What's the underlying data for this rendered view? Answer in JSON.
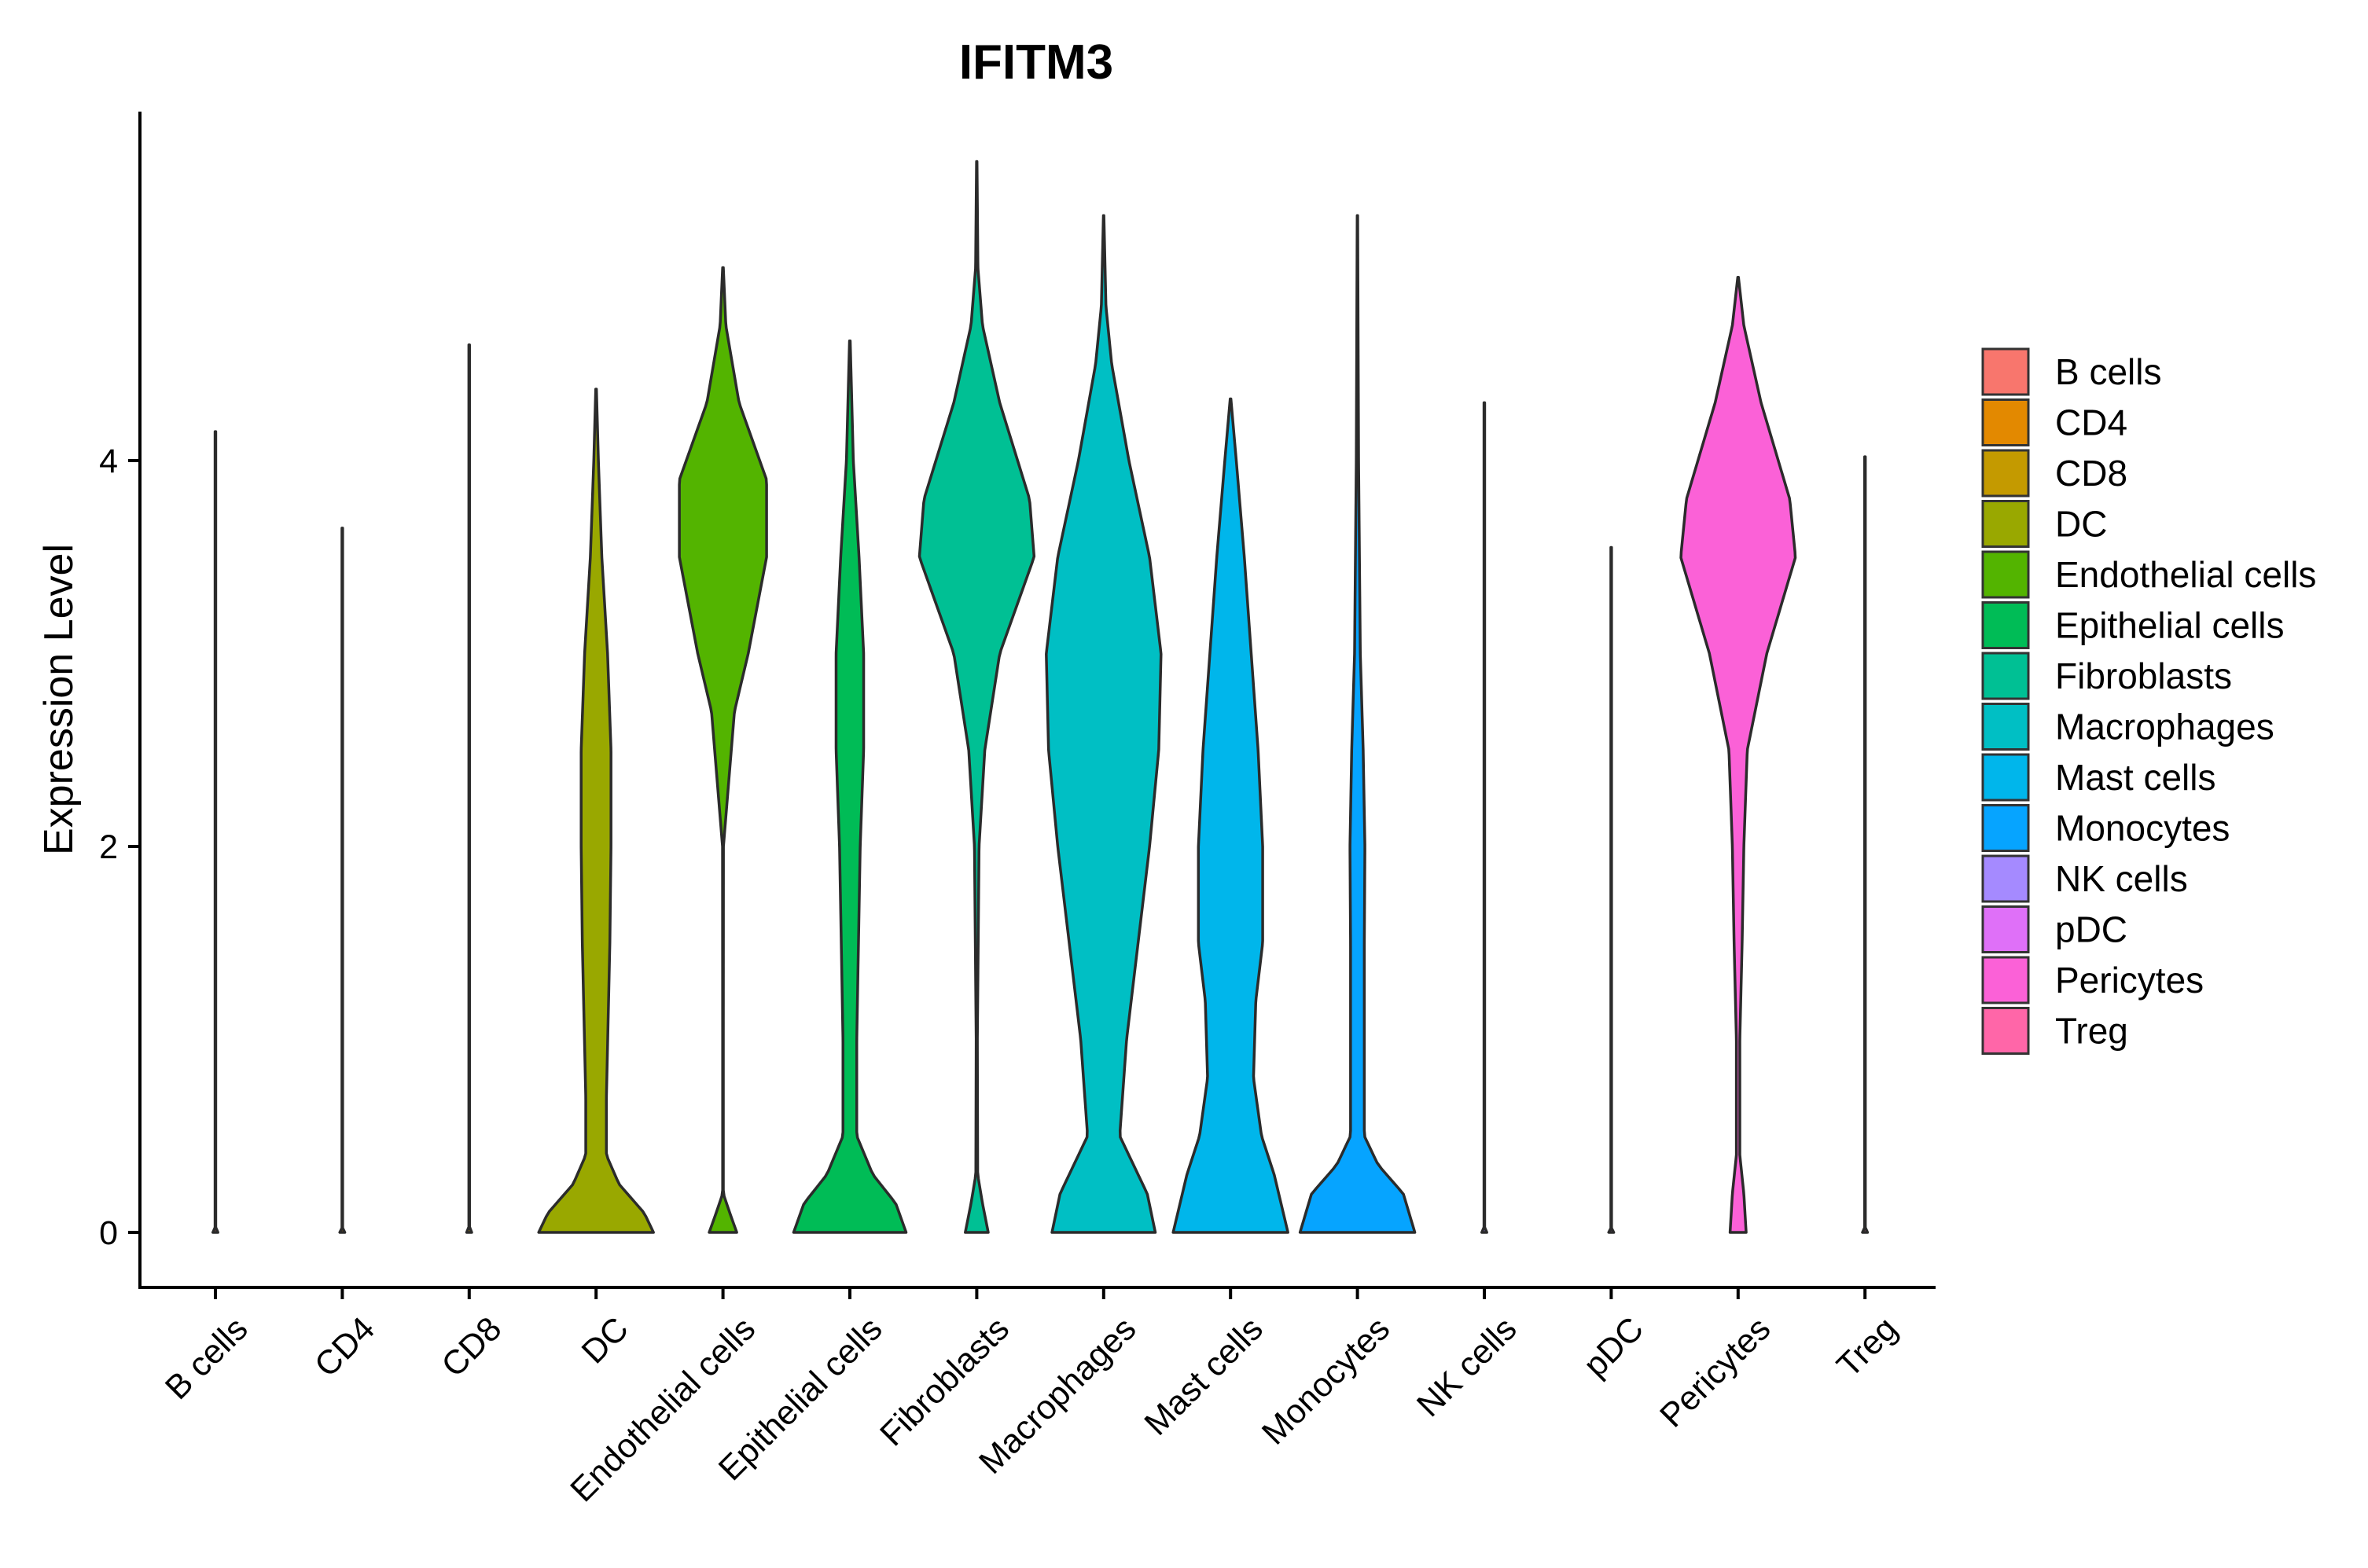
{
  "chart_data": {
    "type": "violin",
    "title": "IFITM3",
    "xlabel": "",
    "ylabel": "Expression Level",
    "ylim": [
      -0.27,
      5.72
    ],
    "yticks": [
      0,
      2,
      4
    ],
    "categories": [
      "B cells",
      "CD4",
      "CD8",
      "DC",
      "Endothelial cells",
      "Epithelial cells",
      "Fibroblasts",
      "Macrophages",
      "Mast cells",
      "Monocytes",
      "NK cells",
      "pDC",
      "Pericytes",
      "Treg"
    ],
    "colors": [
      "#F8766D",
      "#E38900",
      "#C49A00",
      "#99A800",
      "#53B400",
      "#00BC56",
      "#00C094",
      "#00BFC4",
      "#00B6EB",
      "#06A4FF",
      "#A58AFF",
      "#DF70F8",
      "#FB61D7",
      "#FF66A8"
    ],
    "legend_title": "",
    "legend_position": "right",
    "series": [
      {
        "name": "B cells",
        "max": 4.15,
        "profile": [
          [
            0,
            0.022
          ],
          [
            0.005,
            0.5
          ],
          [
            0.02,
            0.003
          ],
          [
            4.15,
            0.003
          ]
        ]
      },
      {
        "name": "CD4",
        "max": 3.65,
        "profile": [
          [
            0,
            0.022
          ],
          [
            0.005,
            0.5
          ],
          [
            0.02,
            0.003
          ],
          [
            3.65,
            0.003
          ]
        ]
      },
      {
        "name": "CD8",
        "max": 4.6,
        "profile": [
          [
            0,
            0.022
          ],
          [
            0.005,
            0.5
          ],
          [
            0.02,
            0.003
          ],
          [
            4.6,
            0.003
          ]
        ]
      },
      {
        "name": "DC",
        "max": 4.37,
        "profile": [
          [
            0,
            0.5
          ],
          [
            0.1,
            0.42
          ],
          [
            0.25,
            0.2
          ],
          [
            0.4,
            0.09
          ],
          [
            0.7,
            0.09
          ],
          [
            1.5,
            0.12
          ],
          [
            2.0,
            0.13
          ],
          [
            2.5,
            0.13
          ],
          [
            3.0,
            0.1
          ],
          [
            3.5,
            0.05
          ],
          [
            4.0,
            0.02
          ],
          [
            4.37,
            0.003
          ]
        ]
      },
      {
        "name": "Endothelial cells",
        "max": 5.0,
        "profile": [
          [
            0,
            0.12
          ],
          [
            0.1,
            0.06
          ],
          [
            0.2,
            0.003
          ],
          [
            1.0,
            0.003
          ],
          [
            2.0,
            0.004
          ],
          [
            2.7,
            0.1
          ],
          [
            3.0,
            0.22
          ],
          [
            3.5,
            0.38
          ],
          [
            3.9,
            0.38
          ],
          [
            4.3,
            0.14
          ],
          [
            4.7,
            0.025
          ],
          [
            5.0,
            0.003
          ]
        ]
      },
      {
        "name": "Epithelial cells",
        "max": 4.62,
        "profile": [
          [
            0,
            0.49
          ],
          [
            0.15,
            0.4
          ],
          [
            0.3,
            0.2
          ],
          [
            0.5,
            0.06
          ],
          [
            1.0,
            0.06
          ],
          [
            2.0,
            0.09
          ],
          [
            2.5,
            0.12
          ],
          [
            3.0,
            0.12
          ],
          [
            3.5,
            0.08
          ],
          [
            4.0,
            0.03
          ],
          [
            4.62,
            0.003
          ]
        ]
      },
      {
        "name": "Fibroblasts",
        "max": 5.55,
        "profile": [
          [
            0,
            0.1
          ],
          [
            0.15,
            0.05
          ],
          [
            0.3,
            0.008
          ],
          [
            1.0,
            0.005
          ],
          [
            2.0,
            0.02
          ],
          [
            2.5,
            0.07
          ],
          [
            3.0,
            0.2
          ],
          [
            3.5,
            0.5
          ],
          [
            3.8,
            0.46
          ],
          [
            4.3,
            0.2
          ],
          [
            4.7,
            0.05
          ],
          [
            5.0,
            0.01
          ],
          [
            5.55,
            0.002
          ]
        ]
      },
      {
        "name": "Macrophages",
        "max": 5.27,
        "profile": [
          [
            0,
            0.45
          ],
          [
            0.2,
            0.38
          ],
          [
            0.5,
            0.14
          ],
          [
            1.0,
            0.2
          ],
          [
            1.5,
            0.3
          ],
          [
            2.0,
            0.4
          ],
          [
            2.5,
            0.48
          ],
          [
            3.0,
            0.5
          ],
          [
            3.5,
            0.4
          ],
          [
            4.0,
            0.22
          ],
          [
            4.5,
            0.07
          ],
          [
            4.8,
            0.02
          ],
          [
            5.27,
            0.002
          ]
        ]
      },
      {
        "name": "Mast cells",
        "max": 4.32,
        "profile": [
          [
            0,
            0.5
          ],
          [
            0.3,
            0.38
          ],
          [
            0.5,
            0.27
          ],
          [
            0.8,
            0.2
          ],
          [
            1.2,
            0.22
          ],
          [
            1.5,
            0.28
          ],
          [
            2.0,
            0.28
          ],
          [
            2.5,
            0.24
          ],
          [
            3.0,
            0.18
          ],
          [
            3.5,
            0.12
          ],
          [
            4.0,
            0.05
          ],
          [
            4.32,
            0.003
          ]
        ]
      },
      {
        "name": "Monocytes",
        "max": 5.27,
        "profile": [
          [
            0,
            0.5
          ],
          [
            0.2,
            0.4
          ],
          [
            0.35,
            0.18
          ],
          [
            0.5,
            0.06
          ],
          [
            1.0,
            0.06
          ],
          [
            1.5,
            0.06
          ],
          [
            2.0,
            0.065
          ],
          [
            2.5,
            0.05
          ],
          [
            3.0,
            0.025
          ],
          [
            4.0,
            0.01
          ],
          [
            5.27,
            0.002
          ]
        ]
      },
      {
        "name": "NK cells",
        "max": 4.3,
        "profile": [
          [
            0,
            0.022
          ],
          [
            0.005,
            0.5
          ],
          [
            0.02,
            0.003
          ],
          [
            4.3,
            0.003
          ]
        ]
      },
      {
        "name": "pDC",
        "max": 3.55,
        "profile": [
          [
            0,
            0.022
          ],
          [
            0.005,
            0.5
          ],
          [
            0.02,
            0.003
          ],
          [
            3.55,
            0.003
          ]
        ]
      },
      {
        "name": "Pericytes",
        "max": 4.95,
        "profile": [
          [
            0,
            0.07
          ],
          [
            0.2,
            0.05
          ],
          [
            0.4,
            0.015
          ],
          [
            1.0,
            0.015
          ],
          [
            1.5,
            0.035
          ],
          [
            2.0,
            0.05
          ],
          [
            2.5,
            0.08
          ],
          [
            3.0,
            0.25
          ],
          [
            3.5,
            0.5
          ],
          [
            3.8,
            0.45
          ],
          [
            4.3,
            0.2
          ],
          [
            4.7,
            0.05
          ],
          [
            4.95,
            0.003
          ]
        ]
      },
      {
        "name": "Treg",
        "max": 4.02,
        "profile": [
          [
            0,
            0.022
          ],
          [
            0.005,
            0.5
          ],
          [
            0.02,
            0.003
          ],
          [
            4.02,
            0.003
          ]
        ]
      }
    ]
  }
}
